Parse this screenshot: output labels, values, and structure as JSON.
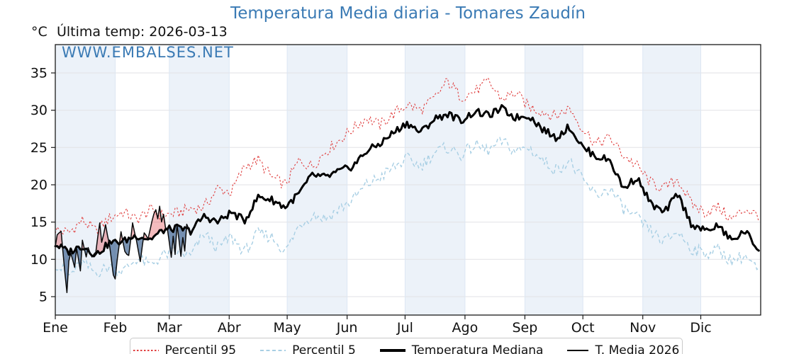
{
  "title": "Temperatura Media diaria - Tomares Zaudín",
  "header": {
    "unit": "°C",
    "last_temp": "Última temp: 2026-03-13"
  },
  "watermark": "WWW.EMBALSES.NET",
  "colors": {
    "title": "#3a7ab4",
    "watermark": "#3a7ab4",
    "p95": "#e04141",
    "p5": "#a8cfe4",
    "mediana": "#000000",
    "t2026": "#0a0a0a",
    "fill_above": "rgba(220,45,50,0.32)",
    "fill_below": "rgba(42,82,132,0.62)",
    "band": "#ecf2f9",
    "grid_h": "#e2e2e5",
    "grid_v": "#dde7f3",
    "frame": "#1a1a1a",
    "tick_text": "#111111"
  },
  "chart_data": {
    "type": "line",
    "title": "Temperatura Media diaria - Tomares Zaudín",
    "ylabel": "°C",
    "y_ticks": [
      5,
      10,
      15,
      20,
      25,
      30,
      35
    ],
    "ylim": [
      2.5,
      38.8
    ],
    "x_ticks": [
      "Ene",
      "Feb",
      "Mar",
      "Abr",
      "May",
      "Jun",
      "Jul",
      "Ago",
      "Sep",
      "Oct",
      "Nov",
      "Dic"
    ],
    "month_start_days": [
      0,
      31,
      59,
      90,
      120,
      151,
      181,
      212,
      243,
      273,
      304,
      334
    ],
    "days_in_year": 365,
    "grid": true,
    "legend_position": "bottom",
    "series": [
      {
        "id": "p95",
        "label": "Percentil 95",
        "style": "dotted",
        "sample_interval_days": 7,
        "values": [
          14.0,
          13.6,
          15.2,
          13.8,
          15.5,
          16.4,
          15.3,
          16.6,
          15.9,
          16.2,
          16.8,
          17.0,
          19.5,
          19.0,
          22.5,
          23.3,
          21.0,
          20.0,
          23.2,
          22.5,
          24.5,
          26.0,
          27.5,
          29.0,
          28.0,
          29.5,
          30.8,
          30.0,
          31.5,
          33.9,
          31.8,
          32.5,
          33.8,
          31.5,
          32.3,
          30.5,
          29.8,
          29.2,
          30.3,
          27.5,
          25.5,
          26.3,
          24.0,
          22.5,
          20.3,
          19.5,
          20.8,
          17.5,
          16.3,
          17.0,
          15.3,
          16.8,
          15.8
        ]
      },
      {
        "id": "p5",
        "label": "Percentil 5",
        "style": "dashed",
        "sample_interval_days": 7,
        "values": [
          9.5,
          7.8,
          9.5,
          8.2,
          9.0,
          8.4,
          10.1,
          9.2,
          10.6,
          11.0,
          10.4,
          13.5,
          11.5,
          13.0,
          11.0,
          13.5,
          13.0,
          11.0,
          14.5,
          16.0,
          15.5,
          16.8,
          18.0,
          20.0,
          21.0,
          22.3,
          23.5,
          22.5,
          24.3,
          25.0,
          24.0,
          25.3,
          24.6,
          25.8,
          24.5,
          25.0,
          23.3,
          22.0,
          23.2,
          20.5,
          18.5,
          19.5,
          16.8,
          15.5,
          13.8,
          12.3,
          13.8,
          11.5,
          10.8,
          11.3,
          9.8,
          10.5,
          8.3
        ]
      },
      {
        "id": "mediana",
        "label": "Temperatura Mediana",
        "style": "solid-thick",
        "sample_interval_days": 7,
        "values": [
          12.0,
          11.0,
          11.8,
          10.6,
          12.2,
          12.4,
          13.2,
          12.7,
          13.9,
          14.2,
          13.8,
          15.8,
          15.0,
          16.3,
          15.2,
          18.4,
          18.0,
          17.0,
          18.8,
          21.3,
          21.0,
          21.8,
          22.5,
          24.5,
          25.5,
          27.0,
          28.3,
          27.0,
          28.8,
          29.5,
          28.6,
          29.8,
          29.3,
          30.2,
          29.0,
          29.3,
          27.5,
          26.3,
          27.8,
          25.0,
          23.8,
          23.3,
          19.5,
          21.0,
          17.5,
          16.2,
          18.8,
          14.8,
          13.8,
          14.5,
          12.5,
          13.8,
          11.2
        ]
      },
      {
        "id": "t2026",
        "label": "T. Media 2026",
        "style": "solid-thin",
        "end_day": 71,
        "points": [
          [
            0,
            11.8
          ],
          [
            1,
            13.2
          ],
          [
            3,
            13.9
          ],
          [
            4,
            11.0
          ],
          [
            6,
            5.4
          ],
          [
            7,
            9.8
          ],
          [
            8,
            11.0
          ],
          [
            10,
            8.9
          ],
          [
            11,
            11.4
          ],
          [
            13,
            8.6
          ],
          [
            14,
            12.6
          ],
          [
            16,
            10.4
          ],
          [
            17,
            11.6
          ],
          [
            19,
            10.2
          ],
          [
            21,
            11.0
          ],
          [
            23,
            14.9
          ],
          [
            24,
            12.2
          ],
          [
            26,
            14.5
          ],
          [
            28,
            12.0
          ],
          [
            30,
            8.0
          ],
          [
            31,
            7.4
          ],
          [
            33,
            12.0
          ],
          [
            34,
            13.6
          ],
          [
            36,
            11.0
          ],
          [
            38,
            10.5
          ],
          [
            40,
            14.8
          ],
          [
            42,
            12.5
          ],
          [
            44,
            9.8
          ],
          [
            46,
            13.5
          ],
          [
            48,
            12.8
          ],
          [
            50,
            15.2
          ],
          [
            52,
            16.8
          ],
          [
            53,
            15.5
          ],
          [
            54,
            17.2
          ],
          [
            55,
            15.0
          ],
          [
            56,
            16.2
          ],
          [
            57,
            14.2
          ],
          [
            58,
            14.0
          ],
          [
            60,
            10.3
          ],
          [
            61,
            13.0
          ],
          [
            62,
            10.8
          ],
          [
            63,
            14.6
          ],
          [
            65,
            10.4
          ],
          [
            66,
            13.0
          ],
          [
            67,
            11.0
          ],
          [
            68,
            14.8
          ],
          [
            70,
            13.2
          ],
          [
            71,
            13.8
          ]
        ]
      }
    ],
    "fills": {
      "above": "current temp above median (red)",
      "below": "current temp below median (blue)"
    },
    "jitter": {
      "p95": 0.8,
      "p5": 0.85,
      "mediana": 0.5,
      "t2026": 0.15
    },
    "shaded_months": "alternate starting with Ene"
  }
}
